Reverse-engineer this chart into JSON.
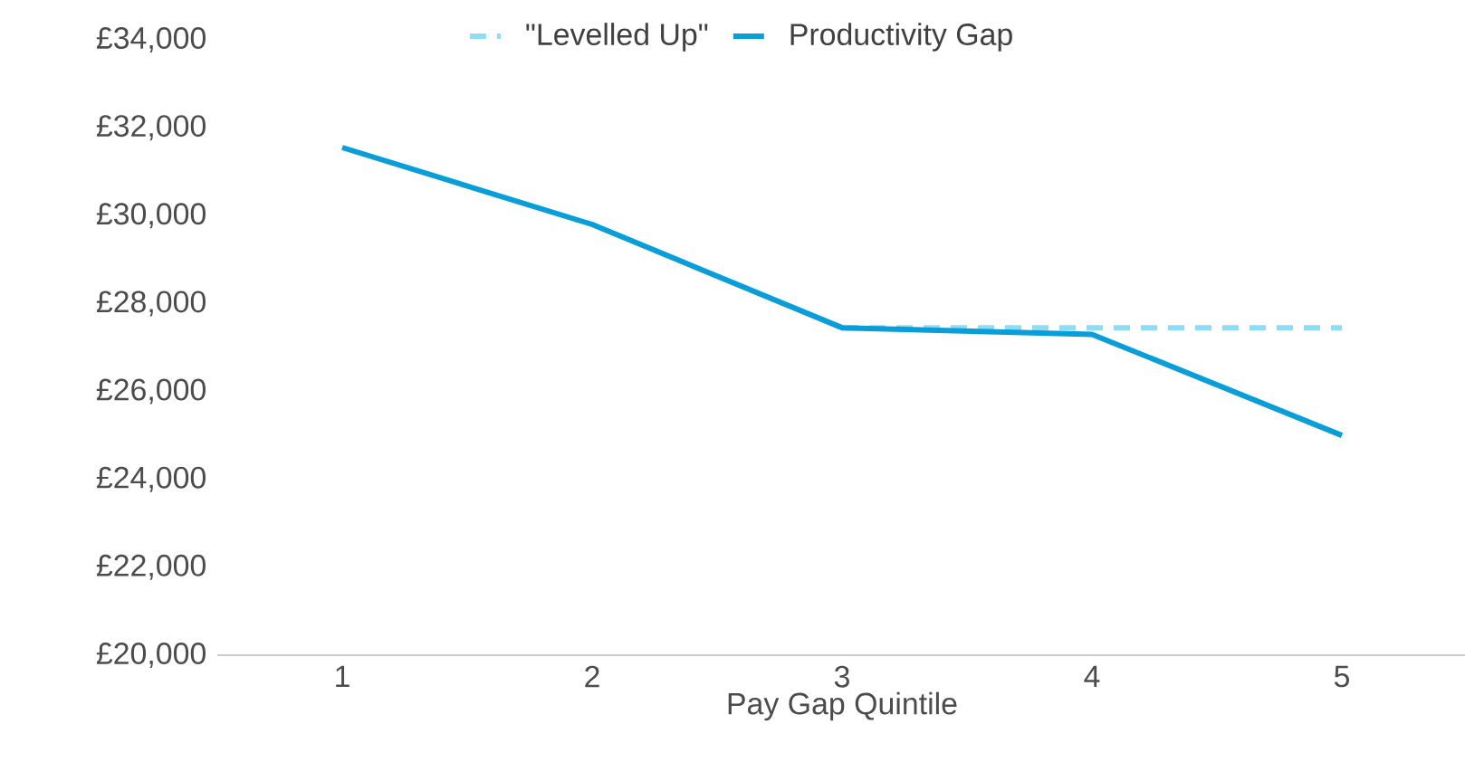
{
  "chart_data": {
    "type": "line",
    "xlabel": "Pay Gap Quintile",
    "categories": [
      "1",
      "2",
      "3",
      "4",
      "5"
    ],
    "series": [
      {
        "name": "\"Levelled Up\"",
        "color": "#8fdcf7",
        "values": [
          null,
          null,
          27450,
          27450,
          27450
        ],
        "line_style": "dashed"
      },
      {
        "name": "Productivity Gap",
        "color": "#0a9ed9",
        "values": [
          31550,
          29800,
          27450,
          27300,
          25000
        ],
        "line_style": "solid"
      }
    ],
    "ylim": [
      20000,
      34000
    ],
    "yticks": [
      {
        "value": 20000,
        "label": "£20,000"
      },
      {
        "value": 22000,
        "label": "£22,000"
      },
      {
        "value": 24000,
        "label": "£24,000"
      },
      {
        "value": 26000,
        "label": "£26,000"
      },
      {
        "value": 28000,
        "label": "£28,000"
      },
      {
        "value": 30000,
        "label": "£30,000"
      },
      {
        "value": 32000,
        "label": "£32,000"
      },
      {
        "value": 34000,
        "label": "£34,000"
      }
    ],
    "grid": false,
    "legend": "top",
    "marker": "none"
  }
}
